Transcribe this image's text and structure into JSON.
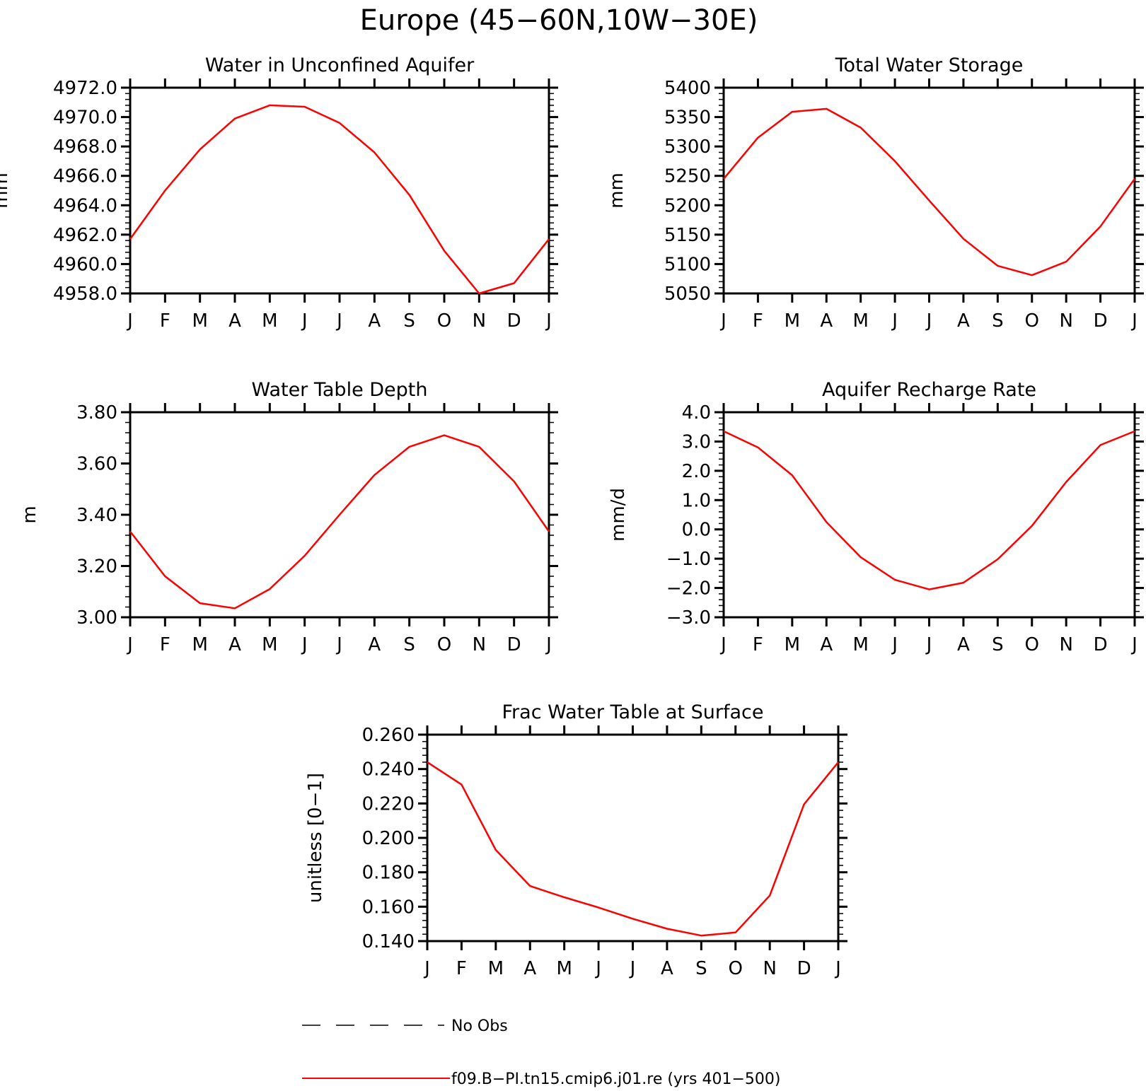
{
  "figure_title": "Europe (45−60N,10W−30E)",
  "months": [
    "J",
    "F",
    "M",
    "A",
    "M",
    "J",
    "J",
    "A",
    "S",
    "O",
    "N",
    "D",
    "J"
  ],
  "colors": {
    "model_line": "#ff0000",
    "obs_line": "#000000",
    "axes": "#000000"
  },
  "legend": {
    "obs_label": "No Obs",
    "model_label": "f09.B−PI.tn15.cmip6.j01.re (yrs 401−500)"
  },
  "chart_data": [
    {
      "type": "line",
      "title": "Water in Unconfined Aquifer",
      "ylabel": "mm",
      "ylim": [
        4958.0,
        4972.0
      ],
      "yticks": [
        4958.0,
        4960.0,
        4962.0,
        4964.0,
        4966.0,
        4968.0,
        4970.0,
        4972.0
      ],
      "ytick_labels": [
        "4958.0",
        "4960.0",
        "4962.0",
        "4964.0",
        "4966.0",
        "4968.0",
        "4970.0",
        "4972.0"
      ],
      "yminor": 0.4,
      "categories": [
        "J",
        "F",
        "M",
        "A",
        "M",
        "J",
        "J",
        "A",
        "S",
        "O",
        "N",
        "D",
        "J"
      ],
      "values": [
        4961.7,
        4965.0,
        4967.8,
        4969.9,
        4970.8,
        4970.7,
        4969.6,
        4967.6,
        4964.7,
        4960.9,
        4958.0,
        4958.7,
        4961.7
      ]
    },
    {
      "type": "line",
      "title": "Total Water Storage",
      "ylabel": "mm",
      "ylim": [
        5050,
        5400
      ],
      "yticks": [
        5050,
        5100,
        5150,
        5200,
        5250,
        5300,
        5350,
        5400
      ],
      "ytick_labels": [
        "5050",
        "5100",
        "5150",
        "5200",
        "5250",
        "5300",
        "5350",
        "5400"
      ],
      "yminor": 10,
      "categories": [
        "J",
        "F",
        "M",
        "A",
        "M",
        "J",
        "J",
        "A",
        "S",
        "O",
        "N",
        "D",
        "J"
      ],
      "values": [
        5245,
        5315,
        5359,
        5364,
        5332,
        5275,
        5208,
        5143,
        5097,
        5081,
        5104,
        5164,
        5245
      ]
    },
    {
      "type": "line",
      "title": "Water Table Depth",
      "ylabel": "m",
      "ylim": [
        3.0,
        3.8
      ],
      "yticks": [
        3.0,
        3.2,
        3.4,
        3.6,
        3.8
      ],
      "ytick_labels": [
        "3.00",
        "3.20",
        "3.40",
        "3.60",
        "3.80"
      ],
      "yminor": 0.04,
      "categories": [
        "J",
        "F",
        "M",
        "A",
        "M",
        "J",
        "J",
        "A",
        "S",
        "O",
        "N",
        "D",
        "J"
      ],
      "values": [
        3.335,
        3.16,
        3.055,
        3.035,
        3.11,
        3.24,
        3.4,
        3.555,
        3.665,
        3.71,
        3.665,
        3.53,
        3.335
      ]
    },
    {
      "type": "line",
      "title": "Aquifer Recharge Rate",
      "ylabel": "mm/d",
      "ylim": [
        -3.0,
        4.0
      ],
      "yticks": [
        -3.0,
        -2.0,
        -1.0,
        0.0,
        1.0,
        2.0,
        3.0,
        4.0
      ],
      "ytick_labels": [
        "−3.0",
        "−2.0",
        "−1.0",
        "0.0",
        "1.0",
        "2.0",
        "3.0",
        "4.0"
      ],
      "yminor": 0.2,
      "categories": [
        "J",
        "F",
        "M",
        "A",
        "M",
        "J",
        "J",
        "A",
        "S",
        "O",
        "N",
        "D",
        "J"
      ],
      "values": [
        3.35,
        2.8,
        1.85,
        0.25,
        -0.95,
        -1.72,
        -2.05,
        -1.82,
        -1.02,
        0.12,
        1.62,
        2.88,
        3.35
      ]
    },
    {
      "type": "line",
      "title": "Frac Water Table at Surface",
      "ylabel": "unitless [0−1]",
      "ylim": [
        0.14,
        0.26
      ],
      "yticks": [
        0.14,
        0.16,
        0.18,
        0.2,
        0.22,
        0.24,
        0.26
      ],
      "ytick_labels": [
        "0.140",
        "0.160",
        "0.180",
        "0.200",
        "0.220",
        "0.240",
        "0.260"
      ],
      "yminor": 0.004,
      "categories": [
        "J",
        "F",
        "M",
        "A",
        "M",
        "J",
        "J",
        "A",
        "S",
        "O",
        "N",
        "D",
        "J"
      ],
      "values": [
        0.244,
        0.231,
        0.193,
        0.172,
        0.1655,
        0.1595,
        0.153,
        0.1472,
        0.1432,
        0.145,
        0.1665,
        0.2195,
        0.244
      ]
    }
  ]
}
